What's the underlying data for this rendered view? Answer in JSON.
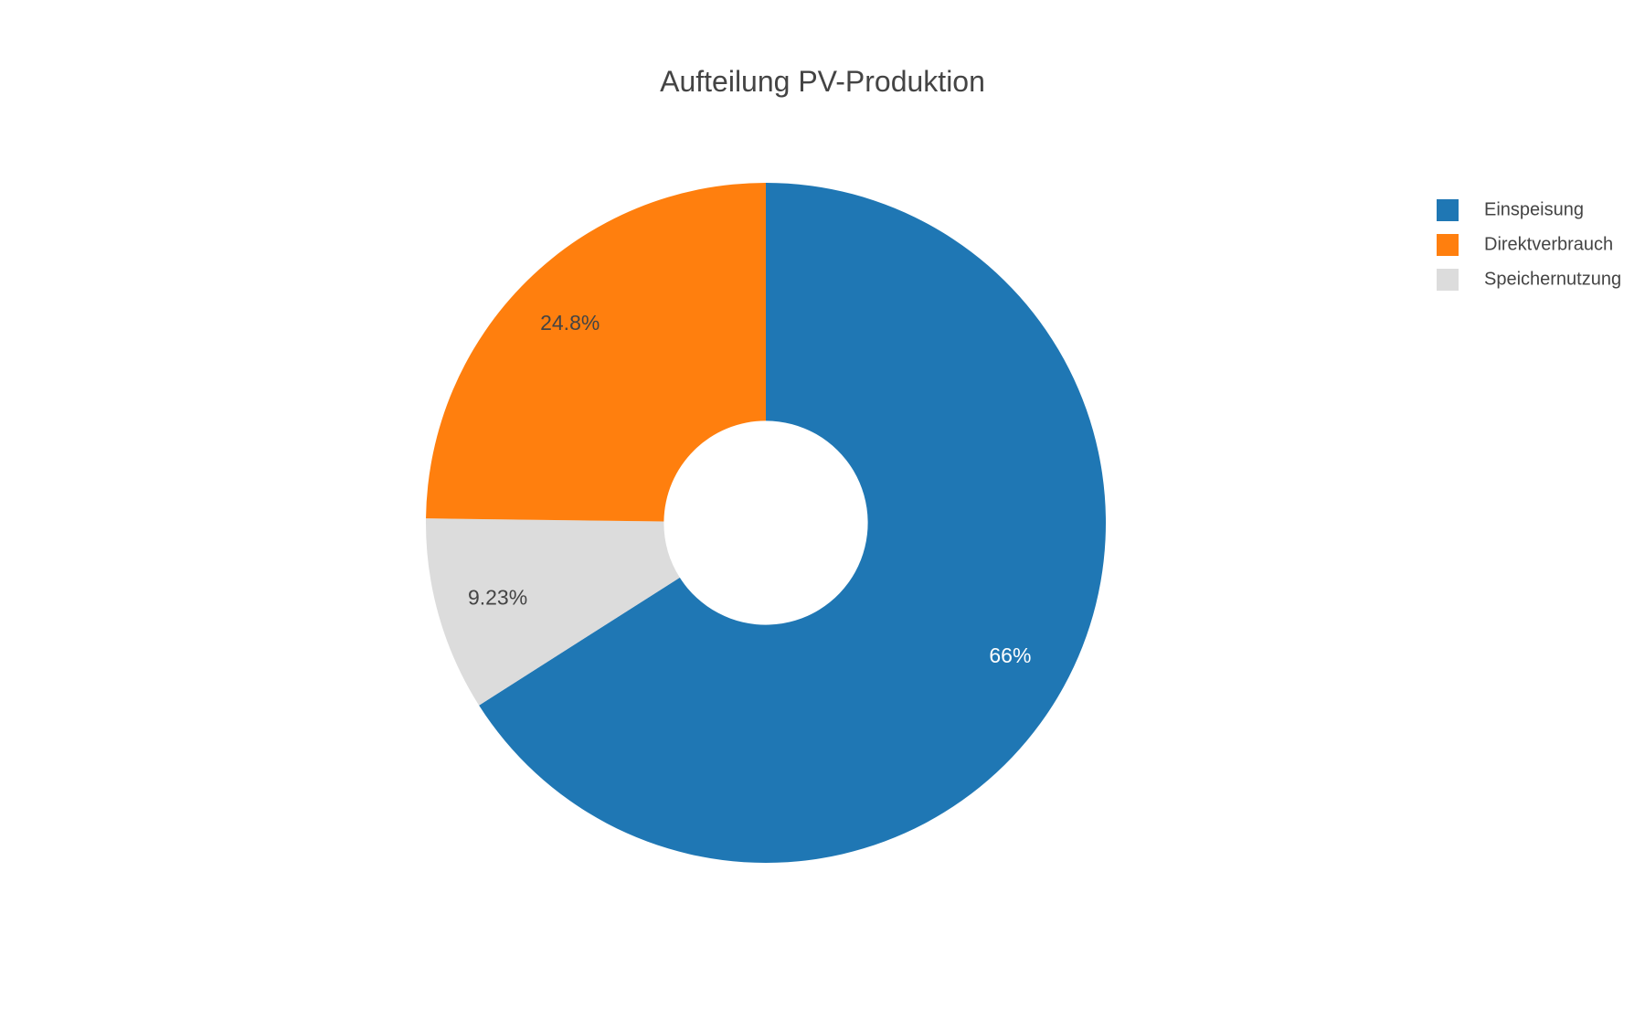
{
  "chart_data": {
    "type": "pie",
    "hole": 0.3,
    "title": "Aufteilung PV-Produktion",
    "slices": [
      {
        "name": "Einspeisung",
        "value": 66.0,
        "label": "66%",
        "color": "#1f77b4",
        "label_color": "#ffffff"
      },
      {
        "name": "Speichernutzung",
        "value": 9.23,
        "label": "9.23%",
        "color": "#dcdcdc",
        "label_color": "#444444"
      },
      {
        "name": "Direktverbrauch",
        "value": 24.8,
        "label": "24.8%",
        "color": "#ff7f0e",
        "label_color": "#444444"
      }
    ],
    "legend": {
      "placement": "top-right",
      "items": [
        {
          "name": "Einspeisung",
          "color": "#1f77b4"
        },
        {
          "name": "Direktverbrauch",
          "color": "#ff7f0e"
        },
        {
          "name": "Speichernutzung",
          "color": "#dcdcdc"
        }
      ]
    }
  }
}
